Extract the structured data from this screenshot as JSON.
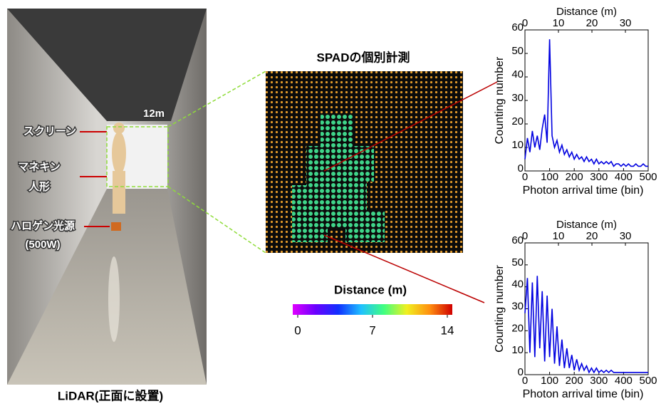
{
  "photo": {
    "distance": "12m",
    "screen": "スクリーン",
    "mannequin": [
      "マネキン",
      "人形"
    ],
    "lamp": [
      "ハロゲン光源",
      "(500W)"
    ],
    "caption": "LiDAR(正面に設置)"
  },
  "spad": {
    "title": "SPADの個別計測",
    "colorbar": {
      "label": "Distance (m)",
      "lim": [
        0,
        14
      ],
      "ticks": [
        0,
        7,
        14
      ],
      "colors": [
        "#e000ff",
        "#6a00ff",
        "#1030ff",
        "#20c0ff",
        "#40ff80",
        "#f0f020",
        "#ff9010",
        "#d00000"
      ]
    }
  },
  "chart_data": [
    {
      "type": "line",
      "x2label": "Distance (m)",
      "ylabel": "Counting number",
      "xlabel": "Photon arrival time (bin)",
      "color": "#0000e0",
      "x": [
        0,
        10,
        20,
        30,
        40,
        50,
        60,
        70,
        80,
        90,
        100,
        110,
        120,
        130,
        140,
        150,
        160,
        170,
        180,
        190,
        200,
        210,
        220,
        230,
        240,
        250,
        260,
        270,
        280,
        290,
        300,
        310,
        320,
        330,
        340,
        350,
        360,
        370,
        380,
        390,
        400,
        410,
        420,
        430,
        440,
        450,
        460,
        470,
        480,
        490,
        500
      ],
      "values": [
        5,
        14,
        8,
        17,
        10,
        15,
        9,
        18,
        24,
        12,
        56,
        15,
        10,
        13,
        8,
        11,
        7,
        9,
        6,
        8,
        5,
        7,
        5,
        6,
        4,
        6,
        4,
        5,
        3,
        5,
        3,
        4,
        3,
        4,
        3,
        4,
        2,
        3,
        3,
        2,
        3,
        2,
        3,
        2,
        2,
        3,
        2,
        2,
        3,
        2,
        2
      ],
      "xlim": [
        0,
        500
      ],
      "xticks": [
        0,
        100,
        200,
        300,
        400,
        500
      ],
      "ylim": [
        0,
        60
      ],
      "yticks": [
        0,
        10,
        20,
        30,
        40,
        50,
        60
      ],
      "x2lim": [
        0,
        36.8
      ],
      "x2ticks": [
        0,
        10,
        20,
        30
      ]
    },
    {
      "type": "line",
      "x2label": "Distance (m)",
      "ylabel": "Counting number",
      "xlabel": "Photon arrival time (bin)",
      "color": "#0000e0",
      "x": [
        0,
        10,
        20,
        30,
        40,
        50,
        60,
        70,
        80,
        90,
        100,
        110,
        120,
        130,
        140,
        150,
        160,
        170,
        180,
        190,
        200,
        210,
        220,
        230,
        240,
        250,
        260,
        270,
        280,
        290,
        300,
        310,
        320,
        330,
        340,
        350,
        360,
        370,
        380,
        390,
        400,
        410,
        420,
        430,
        440,
        450,
        460,
        470,
        480,
        490,
        500
      ],
      "values": [
        28,
        44,
        10,
        42,
        8,
        45,
        12,
        38,
        6,
        36,
        8,
        30,
        5,
        22,
        4,
        16,
        3,
        12,
        3,
        9,
        2,
        7,
        2,
        5,
        2,
        4,
        1,
        3,
        1,
        3,
        1,
        2,
        1,
        2,
        1,
        2,
        1,
        1,
        1,
        1,
        1,
        1,
        1,
        1,
        1,
        1,
        1,
        1,
        1,
        1,
        1
      ],
      "xlim": [
        0,
        500
      ],
      "xticks": [
        0,
        100,
        200,
        300,
        400,
        500
      ],
      "ylim": [
        0,
        60
      ],
      "yticks": [
        0,
        10,
        20,
        30,
        40,
        50,
        60
      ],
      "x2lim": [
        0,
        36.8
      ],
      "x2ticks": [
        0,
        10,
        20,
        30
      ]
    }
  ]
}
